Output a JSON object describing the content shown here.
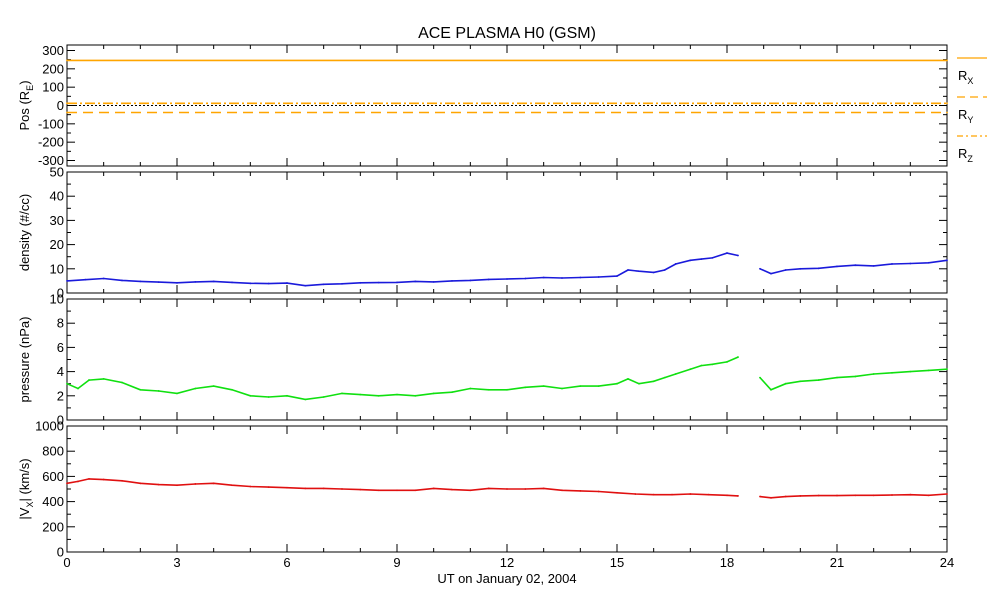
{
  "title": "ACE PLASMA H0 (GSM)",
  "xlabel": "UT on January 02, 2004",
  "x_ticks": [
    "0",
    "3",
    "6",
    "9",
    "12",
    "15",
    "18",
    "21",
    "24"
  ],
  "legend": {
    "rx": {
      "base": "R",
      "sub": "X"
    },
    "ry": {
      "base": "R",
      "sub": "Y"
    },
    "rz": {
      "base": "R",
      "sub": "Z"
    }
  },
  "chart_data": [
    {
      "type": "line",
      "id": "position",
      "ylabel": "Pos (R",
      "ylabel_sub": "E",
      "ylabel_tail": ")",
      "ylim": [
        -330,
        330
      ],
      "yticks": [
        300,
        200,
        100,
        0,
        -100,
        -200,
        -300
      ],
      "xlim": [
        0,
        24
      ],
      "series": [
        {
          "name": "RX",
          "color": "#ffa500",
          "dash": "none",
          "x": [
            0,
            24
          ],
          "values": [
            246,
            246
          ]
        },
        {
          "name": "RY",
          "color": "#ffa500",
          "dash": "10,6",
          "x": [
            0,
            24
          ],
          "values": [
            -38,
            -38
          ]
        },
        {
          "name": "RZ",
          "color": "#ffa500",
          "dash": "10,3,2,3",
          "x": [
            0,
            24
          ],
          "values": [
            12,
            12
          ]
        }
      ],
      "zero_line": true
    },
    {
      "type": "line",
      "id": "density",
      "ylabel": "density (#/cc)",
      "ylim": [
        0,
        50
      ],
      "yticks": [
        50,
        40,
        30,
        20,
        10,
        0
      ],
      "xlim": [
        0,
        24
      ],
      "series": [
        {
          "name": "density",
          "color": "#1a1adb",
          "x": [
            0,
            0.5,
            1,
            1.5,
            2,
            2.5,
            3,
            3.5,
            4,
            4.5,
            5,
            5.5,
            6,
            6.5,
            7,
            7.5,
            8,
            8.5,
            9,
            9.5,
            10,
            10.5,
            11,
            11.5,
            12,
            12.5,
            13,
            13.5,
            14,
            14.5,
            15,
            15.3,
            15.6,
            16,
            16.3,
            16.6,
            17,
            17.3,
            17.6,
            18,
            18.3,
            18.6,
            18.9,
            19.2,
            19.6,
            20,
            20.5,
            21,
            21.5,
            22,
            22.5,
            23,
            23.5,
            24
          ],
          "values": [
            5,
            5.5,
            6,
            5.2,
            4.8,
            4.5,
            4.2,
            4.6,
            4.8,
            4.4,
            4.0,
            3.9,
            4.1,
            3.0,
            3.6,
            3.8,
            4.2,
            4.3,
            4.4,
            4.8,
            4.6,
            5.0,
            5.2,
            5.6,
            5.8,
            6.0,
            6.4,
            6.2,
            6.4,
            6.6,
            7.0,
            9.5,
            9.0,
            8.5,
            9.5,
            12.0,
            13.5,
            14.0,
            14.5,
            16.5,
            15.5,
            null,
            10.0,
            8.0,
            9.5,
            10.0,
            10.2,
            11.0,
            11.5,
            11.2,
            12.0,
            12.2,
            12.5,
            13.5
          ]
        }
      ]
    },
    {
      "type": "line",
      "id": "pressure",
      "ylabel": "pressure (nPa)",
      "ylim": [
        0,
        10
      ],
      "yticks": [
        10,
        8,
        6,
        4,
        2,
        0
      ],
      "xlim": [
        0,
        24
      ],
      "series": [
        {
          "name": "pressure",
          "color": "#10e010",
          "x": [
            0,
            0.3,
            0.6,
            1,
            1.5,
            2,
            2.5,
            3,
            3.5,
            4,
            4.5,
            5,
            5.5,
            6,
            6.5,
            7,
            7.5,
            8,
            8.5,
            9,
            9.5,
            10,
            10.5,
            11,
            11.5,
            12,
            12.5,
            13,
            13.5,
            14,
            14.5,
            15,
            15.3,
            15.6,
            16,
            16.3,
            16.6,
            17,
            17.3,
            17.6,
            18,
            18.3,
            18.6,
            18.9,
            19.2,
            19.6,
            20,
            20.5,
            21,
            21.5,
            22,
            22.5,
            23,
            23.5,
            24
          ],
          "values": [
            3.0,
            2.6,
            3.3,
            3.4,
            3.1,
            2.5,
            2.4,
            2.2,
            2.6,
            2.8,
            2.5,
            2.0,
            1.9,
            2.0,
            1.7,
            1.9,
            2.2,
            2.1,
            2.0,
            2.1,
            2.0,
            2.2,
            2.3,
            2.6,
            2.5,
            2.5,
            2.7,
            2.8,
            2.6,
            2.8,
            2.8,
            3.0,
            3.4,
            3.0,
            3.2,
            3.5,
            3.8,
            4.2,
            4.5,
            4.6,
            4.8,
            5.2,
            null,
            3.5,
            2.5,
            3.0,
            3.2,
            3.3,
            3.5,
            3.6,
            3.8,
            3.9,
            4.0,
            4.1,
            4.2
          ]
        }
      ]
    },
    {
      "type": "line",
      "id": "vx",
      "ylabel": "|V",
      "ylabel_sub": "X",
      "ylabel_tail": "| (km/s)",
      "ylim": [
        0,
        1000
      ],
      "yticks": [
        1000,
        800,
        600,
        400,
        200,
        0
      ],
      "xlim": [
        0,
        24
      ],
      "series": [
        {
          "name": "vx",
          "color": "#e01010",
          "x": [
            0,
            0.3,
            0.6,
            1,
            1.5,
            2,
            2.5,
            3,
            3.5,
            4,
            4.5,
            5,
            5.5,
            6,
            6.5,
            7,
            7.5,
            8,
            8.5,
            9,
            9.5,
            10,
            10.5,
            11,
            11.5,
            12,
            12.5,
            13,
            13.5,
            14,
            14.5,
            15,
            15.5,
            16,
            16.5,
            17,
            17.5,
            18,
            18.3,
            18.6,
            18.9,
            19.2,
            19.6,
            20,
            20.5,
            21,
            21.5,
            22,
            22.5,
            23,
            23.5,
            24
          ],
          "values": [
            545,
            560,
            580,
            575,
            565,
            545,
            535,
            530,
            540,
            545,
            530,
            520,
            515,
            510,
            505,
            505,
            500,
            495,
            490,
            490,
            490,
            505,
            495,
            490,
            505,
            500,
            500,
            505,
            490,
            485,
            480,
            470,
            460,
            455,
            455,
            460,
            455,
            450,
            445,
            null,
            440,
            430,
            440,
            445,
            448,
            448,
            450,
            450,
            452,
            455,
            450,
            460
          ]
        }
      ]
    }
  ]
}
